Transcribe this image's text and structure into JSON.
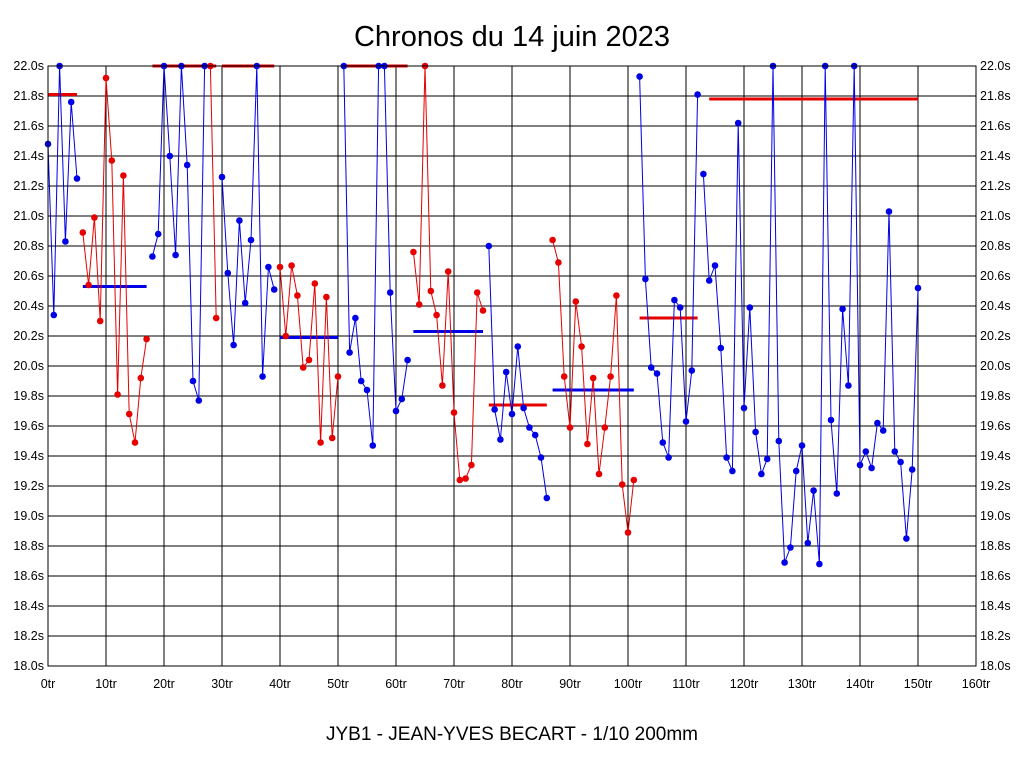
{
  "chart_data": {
    "type": "line",
    "title": "Chronos du 14 juin 2023",
    "subtitle": "JYB1 - JEAN-YVES BECART - 1/10 200mm",
    "xlabel": "",
    "ylabel": "",
    "xlim": [
      0,
      160
    ],
    "ylim": [
      18.0,
      22.0
    ],
    "grid": true,
    "x_unit": "tr",
    "y_unit": "s",
    "x_ticks": [
      "0tr",
      "10tr",
      "20tr",
      "30tr",
      "40tr",
      "50tr",
      "60tr",
      "70tr",
      "80tr",
      "90tr",
      "100tr",
      "110tr",
      "120tr",
      "130tr",
      "140tr",
      "150tr",
      "160tr"
    ],
    "y_ticks": [
      "18.0s",
      "18.2s",
      "18.4s",
      "18.6s",
      "18.8s",
      "19.0s",
      "19.2s",
      "19.4s",
      "19.6s",
      "19.8s",
      "20.0s",
      "20.2s",
      "20.4s",
      "20.6s",
      "20.8s",
      "21.0s",
      "21.2s",
      "21.4s",
      "21.6s",
      "21.8s",
      "22.0s"
    ],
    "colors": {
      "blue": "#0000e6",
      "red": "#e60000",
      "grid": "#000000"
    },
    "series": [
      {
        "name": "seg1",
        "color": "blue",
        "x_start": 0,
        "values": [
          21.48,
          20.34,
          22.0,
          20.83,
          21.76,
          21.25
        ],
        "mean": 21.81,
        "mean_color": "red",
        "mean_range": [
          0,
          5
        ]
      },
      {
        "name": "seg2",
        "color": "red",
        "x_start": 6,
        "values": [
          20.89,
          20.54,
          20.99,
          20.3,
          21.92,
          21.37,
          19.81,
          21.27,
          19.68,
          19.49,
          19.92,
          20.18
        ],
        "mean": 20.53,
        "mean_color": "blue",
        "mean_range": [
          6,
          17
        ]
      },
      {
        "name": "seg3",
        "color": "blue",
        "x_start": 18,
        "values": [
          20.73,
          20.88,
          22.0,
          21.4,
          20.74,
          22.0,
          21.34,
          19.9,
          19.77,
          22.0
        ],
        "mean": 22.0,
        "mean_color": "red",
        "mean_range": [
          18,
          27
        ]
      },
      {
        "name": "seg4",
        "color": "red",
        "x_start": 28,
        "values": [
          22.0,
          20.32
        ],
        "mean": 22.0,
        "mean_color": "red",
        "mean_range": [
          28,
          29
        ]
      },
      {
        "name": "seg5",
        "color": "blue",
        "x_start": 30,
        "values": [
          21.26,
          20.62,
          20.14,
          20.97,
          20.42,
          20.84,
          22.0,
          19.93,
          20.66,
          20.51
        ],
        "mean": 22.0,
        "mean_color": "red",
        "mean_range": [
          30,
          39
        ]
      },
      {
        "name": "seg6",
        "color": "red",
        "x_start": 40,
        "values": [
          20.66,
          20.2,
          20.67,
          20.47,
          19.99,
          20.04,
          20.55,
          19.49,
          20.46,
          19.52,
          19.93
        ],
        "mean": 20.19,
        "mean_color": "blue",
        "mean_range": [
          40,
          50
        ]
      },
      {
        "name": "seg7",
        "color": "blue",
        "x_start": 51,
        "values": [
          22.0,
          20.09,
          20.32,
          19.9,
          19.84,
          19.47,
          22.0,
          22.0,
          20.49,
          19.7,
          19.78,
          20.04
        ],
        "mean": 22.0,
        "mean_color": "red",
        "mean_range": [
          51,
          62
        ]
      },
      {
        "name": "seg8",
        "color": "red",
        "x_start": 63,
        "values": [
          20.76,
          20.41,
          22.0,
          20.5,
          20.34,
          19.87,
          20.63,
          19.69,
          19.24,
          19.25,
          19.34,
          20.49,
          20.37
        ],
        "mean": 20.23,
        "mean_color": "blue",
        "mean_range": [
          63,
          75
        ]
      },
      {
        "name": "seg9",
        "color": "blue",
        "x_start": 76,
        "values": [
          20.8,
          19.71,
          19.51,
          19.96,
          19.68,
          20.13,
          19.72,
          19.59,
          19.54,
          19.39,
          19.12
        ],
        "mean": 19.74,
        "mean_color": "red",
        "mean_range": [
          76,
          86
        ]
      },
      {
        "name": "seg10",
        "color": "red",
        "x_start": 87,
        "values": [
          20.84,
          20.69,
          19.93,
          19.59,
          20.43,
          20.13,
          19.48,
          19.92,
          19.28,
          19.59,
          19.93,
          20.47,
          19.21,
          18.89,
          19.24
        ],
        "mean": 19.84,
        "mean_color": "blue",
        "mean_range": [
          87,
          101
        ]
      },
      {
        "name": "seg11",
        "color": "blue",
        "x_start": 102,
        "values": [
          21.93,
          20.58,
          19.99,
          19.95,
          19.49,
          19.39,
          20.44,
          20.39,
          19.63,
          19.97,
          21.81
        ],
        "mean": 20.32,
        "mean_color": "red",
        "mean_range": [
          102,
          112
        ]
      },
      {
        "name": "seg12",
        "color": "blue",
        "x_start": 113,
        "values": [
          21.28,
          20.57,
          20.67,
          20.12,
          19.39,
          19.3,
          21.62,
          19.72,
          20.39,
          19.56,
          19.28,
          19.38,
          22.0,
          19.5,
          18.69,
          18.79,
          19.3,
          19.47,
          18.82,
          19.17,
          18.68,
          22.0,
          19.64,
          19.15,
          20.38,
          19.87,
          22.0,
          19.34,
          19.43,
          19.32,
          19.62,
          19.57,
          21.03,
          19.43,
          19.36,
          18.85,
          19.31,
          20.52
        ],
        "mean": 21.78,
        "mean_color": "red",
        "mean_range": [
          114,
          150
        ]
      }
    ]
  }
}
